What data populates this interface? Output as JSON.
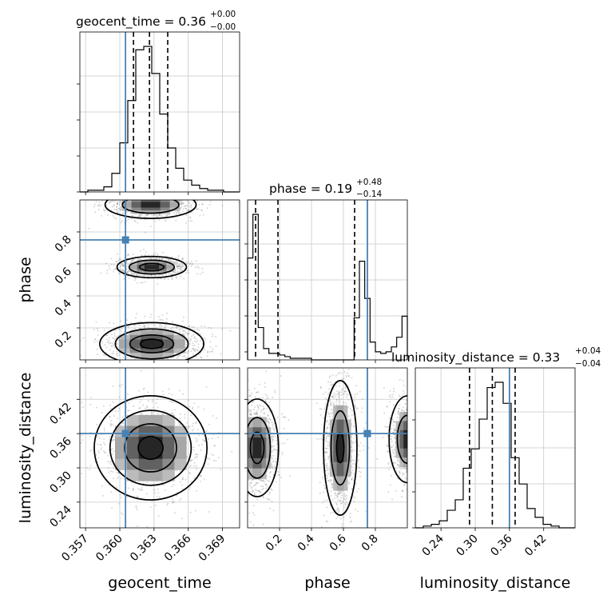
{
  "chart_data": {
    "type": "corner",
    "truth_color": "#4682b4",
    "parameters": [
      {
        "name": "geocent_time",
        "truth": 0.3605,
        "range": [
          0.3565,
          0.3705
        ],
        "ticks": [
          0.357,
          0.36,
          0.363,
          0.366,
          0.369
        ],
        "tick_labels": [
          "0.357",
          "0.360",
          "0.363",
          "0.366",
          "0.369"
        ],
        "quantiles": [
          0.3612,
          0.3626,
          0.3642
        ]
      },
      {
        "name": "phase",
        "truth": 0.75,
        "range": [
          0.0,
          1.0
        ],
        "ticks": [
          0.2,
          0.4,
          0.6,
          0.8
        ],
        "tick_labels": [
          "0.2",
          "0.4",
          "0.6",
          "0.8"
        ],
        "quantiles": [
          0.05,
          0.19,
          0.67
        ]
      },
      {
        "name": "luminosity_distance",
        "truth": 0.36,
        "range": [
          0.195,
          0.475
        ],
        "ticks": [
          0.24,
          0.3,
          0.36,
          0.42
        ],
        "tick_labels": [
          "0.24",
          "0.30",
          "0.36",
          "0.42"
        ],
        "quantiles": [
          0.29,
          0.33,
          0.37
        ]
      }
    ],
    "titles": [
      {
        "lead": "geocent_time = 0.36",
        "upper": "+0.00",
        "lower": "−0.00"
      },
      {
        "lead": "phase = 0.19",
        "upper": "+0.48",
        "lower": "−0.14"
      },
      {
        "lead": "luminosity_distance = 0.33",
        "upper": "+0.04",
        "lower": "−0.04"
      }
    ],
    "histograms": [
      {
        "param": "geocent_time",
        "edges_range": [
          0.3565,
          0.3705
        ],
        "counts": [
          0,
          1,
          1,
          3,
          11,
          29,
          54,
          84,
          86,
          70,
          46,
          26,
          14,
          7,
          4,
          2,
          1,
          1,
          0,
          0
        ]
      },
      {
        "param": "phase",
        "edges_range": [
          0.0,
          1.0
        ],
        "counts": [
          63,
          90,
          20,
          7,
          4,
          4,
          3,
          2,
          1,
          1,
          1,
          1,
          0,
          0,
          0,
          0,
          0,
          0,
          0,
          0,
          26,
          61,
          38,
          11,
          5,
          4,
          5,
          8,
          14,
          27
        ]
      },
      {
        "param": "luminosity_distance",
        "edges_range": [
          0.195,
          0.475
        ],
        "counts": [
          0,
          1,
          2,
          4,
          10,
          16,
          34,
          45,
          62,
          80,
          83,
          71,
          40,
          25,
          11,
          6,
          2,
          1,
          0,
          0
        ]
      }
    ],
    "contour_groups": [
      {
        "x": "geocent_time",
        "y": "phase",
        "blobs": [
          {
            "cx": 0.3627,
            "cy": 0.97,
            "sx": 0.0021,
            "sy": 0.045,
            "levels": [
              1.0,
              0.62
            ]
          },
          {
            "cx": 0.3628,
            "cy": 0.58,
            "sx": 0.0016,
            "sy": 0.035,
            "levels": [
              1.0,
              0.65,
              0.35
            ]
          },
          {
            "cx": 0.3628,
            "cy": 0.1,
            "sx": 0.0024,
            "sy": 0.07,
            "levels": [
              1.0,
              0.7,
              0.42,
              0.22
            ]
          }
        ]
      },
      {
        "x": "geocent_time",
        "y": "luminosity_distance",
        "blobs": [
          {
            "cx": 0.3627,
            "cy": 0.335,
            "sx": 0.0026,
            "sy": 0.048,
            "levels": [
              1.0,
              0.72,
              0.46,
              0.22
            ]
          }
        ]
      },
      {
        "x": "phase",
        "y": "luminosity_distance",
        "blobs": [
          {
            "cx": 0.06,
            "cy": 0.335,
            "sx": 0.07,
            "sy": 0.045,
            "levels": [
              1.0,
              0.62,
              0.32
            ]
          },
          {
            "cx": 0.58,
            "cy": 0.335,
            "sx": 0.055,
            "sy": 0.062,
            "levels": [
              1.0,
              0.55,
              0.22
            ]
          },
          {
            "cx": 1.0,
            "cy": 0.35,
            "sx": 0.06,
            "sy": 0.04,
            "levels": [
              1.0,
              0.55
            ]
          }
        ]
      }
    ],
    "axis_labels": {
      "x": [
        "geocent_time",
        "phase",
        "luminosity_distance"
      ],
      "y": [
        "phase",
        "luminosity_distance"
      ]
    },
    "grid": true
  }
}
